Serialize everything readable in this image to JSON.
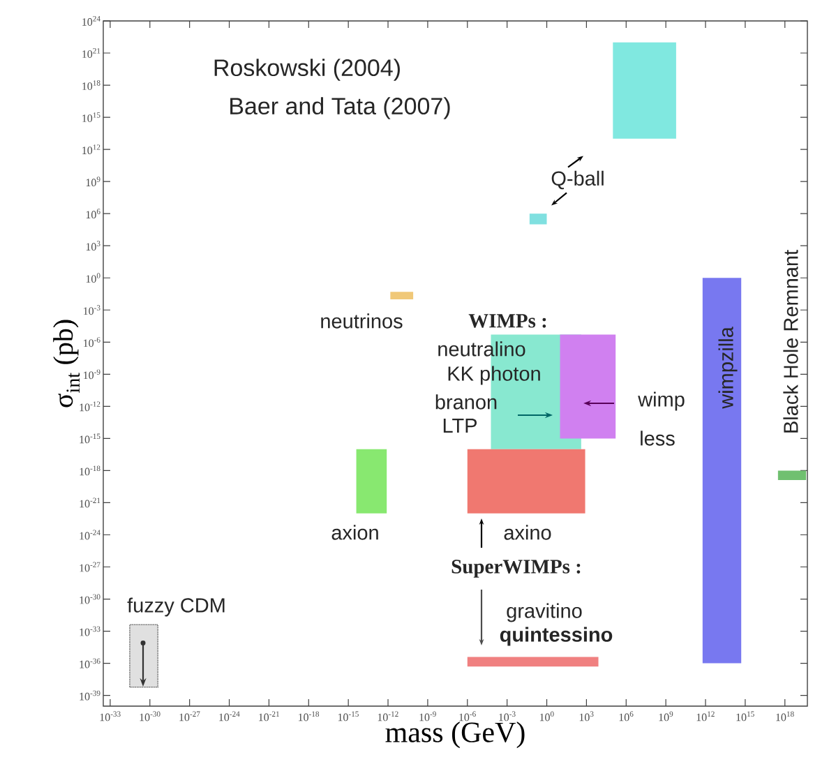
{
  "chart_data": {
    "type": "line",
    "xlabel": "mass (GeV)",
    "ylabel": "σ$_{int}$ (pb)",
    "log": "xy",
    "xlim": [
      3e-34,
      5e+19
    ],
    "ylim": [
      1e-40,
      1e+24
    ],
    "xticks": [
      {
        "value": 1e-33,
        "label": "10$^{-33}$"
      },
      {
        "value": 1e-30,
        "label": "10$^{-30}$"
      },
      {
        "value": 1e-27,
        "label": "10$^{-27}$"
      },
      {
        "value": 1e-24,
        "label": "10$^{-24}$"
      },
      {
        "value": 1e-21,
        "label": "10$^{-21}$"
      },
      {
        "value": 1e-18,
        "label": "10$^{-18}$"
      },
      {
        "value": 1e-15,
        "label": "10$^{-15}$"
      },
      {
        "value": 1e-12,
        "label": "10$^{-12}$"
      },
      {
        "value": 1e-09,
        "label": "10$^{-9}$"
      },
      {
        "value": 1e-06,
        "label": "10$^{-6}$"
      },
      {
        "value": 0.001,
        "label": "10$^{-3}$"
      },
      {
        "value": 1,
        "label": "10$^{0}$"
      },
      {
        "value": 1000.0,
        "label": "10$^{3}$"
      },
      {
        "value": 1000000.0,
        "label": "10$^{6}$"
      },
      {
        "value": 1000000000.0,
        "label": "10$^{9}$"
      },
      {
        "value": 1000000000000.0,
        "label": "10$^{12}$"
      },
      {
        "value": 1000000000000000.0,
        "label": "10$^{15}$"
      },
      {
        "value": 1e+18,
        "label": "10$^{18}$"
      }
    ],
    "yticks": [
      {
        "value": 1e-39,
        "label": "10$^{-39}$"
      },
      {
        "value": 1e-36,
        "label": "10$^{-36}$"
      },
      {
        "value": 1e-33,
        "label": "10$^{-33}$"
      },
      {
        "value": 1e-30,
        "label": "10$^{-30}$"
      },
      {
        "value": 1e-27,
        "label": "10$^{-27}$"
      },
      {
        "value": 1e-24,
        "label": "10$^{-24}$"
      },
      {
        "value": 1e-21,
        "label": "10$^{-21}$"
      },
      {
        "value": 1e-18,
        "label": "10$^{-18}$"
      },
      {
        "value": 1e-15,
        "label": "10$^{-15}$"
      },
      {
        "value": 1e-12,
        "label": "10$^{-12}$"
      },
      {
        "value": 1e-09,
        "label": "10$^{-9}$"
      },
      {
        "value": 1e-06,
        "label": "10$^{-6}$"
      },
      {
        "value": 0.001,
        "label": "10$^{-3}$"
      },
      {
        "value": 1,
        "label": "10$^{0}$"
      },
      {
        "value": 1000.0,
        "label": "10$^{3}$"
      },
      {
        "value": 1000000.0,
        "label": "10$^{6}$"
      },
      {
        "value": 1000000000.0,
        "label": "10$^{9}$"
      },
      {
        "value": 1000000000000.0,
        "label": "10$^{12}$"
      },
      {
        "value": 1000000000000000.0,
        "label": "10$^{15}$"
      },
      {
        "value": 1e+18,
        "label": "10$^{18}$"
      },
      {
        "value": 1e+21,
        "label": "10$^{21}$"
      },
      {
        "value": 1e+24,
        "label": "10$^{24}$"
      }
    ],
    "series": [
      {
        "color": "#80e8e0",
        "x": [
          100000.0,
          6000000000.0
        ],
        "values": [
          null,
          null
        ],
        "lower": [
          10000000000000.0,
          10000000000000.0
        ],
        "upper": [
          1e+22,
          1e+22
        ]
      },
      {
        "color": "#80e0e0",
        "x": [
          0.05,
          1
        ],
        "values": [
          null,
          null
        ],
        "lower": [
          100000.0,
          100000.0
        ],
        "upper": [
          1000000.0,
          1000000.0
        ]
      },
      {
        "color": "#f0c878",
        "x": [
          1.5e-12,
          8e-11
        ],
        "values": [
          null,
          null
        ],
        "lower": [
          0.01,
          0.01
        ],
        "upper": [
          0.05,
          0.05
        ]
      },
      {
        "color": "#88e8d0",
        "x": [
          6e-05,
          400.0
        ],
        "values": [
          null,
          null
        ],
        "lower": [
          1e-16,
          1e-16
        ],
        "upper": [
          5e-06,
          5e-06
        ]
      },
      {
        "color": "#d080f0",
        "x": [
          10.0,
          160000.0
        ],
        "values": [
          null,
          null
        ],
        "lower": [
          1e-15,
          1e-15
        ],
        "upper": [
          5e-06,
          5e-06
        ]
      },
      {
        "color": "#88e870",
        "x": [
          4e-15,
          8e-13
        ],
        "values": [
          null,
          null
        ],
        "lower": [
          1e-22,
          1e-22
        ],
        "upper": [
          1e-16,
          1e-16
        ]
      },
      {
        "color": "#f07870",
        "x": [
          1e-06,
          800.0
        ],
        "values": [
          null,
          null
        ],
        "lower": [
          1e-22,
          1e-22
        ],
        "upper": [
          1e-16,
          1e-16
        ]
      },
      {
        "color": "#f08080",
        "x": [
          1e-06,
          8000.0
        ],
        "values": [
          null,
          null
        ],
        "lower": [
          5e-37,
          5e-37
        ],
        "upper": [
          4e-36,
          4e-36
        ]
      },
      {
        "color": "#7878f0",
        "x": [
          600000000000.0,
          500000000000000.0
        ],
        "values": [
          null,
          null
        ],
        "lower": [
          1e-36,
          1e-36
        ],
        "upper": [
          1,
          1
        ]
      },
      {
        "color": "#70c070",
        "x": [
          3e+17,
          4e+19
        ],
        "values": [
          null,
          null
        ],
        "lower": [
          1.3e-19,
          1.3e-19
        ],
        "upper": [
          1e-18,
          1e-18
        ]
      },
      {
        "color": "#e0e0e0",
        "x": [
          3e-32,
          4e-30
        ],
        "values": [
          null,
          null
        ],
        "lower": [
          6e-39,
          6e-39
        ],
        "upper": [
          4e-33,
          4e-33
        ],
        "line_style": "dotted"
      }
    ],
    "annotations": [
      "Roskowski (2004)",
      "Baer and Tata (2007)",
      "Q-ball",
      "neutrinos",
      "**WIMPs :**",
      "neutralino",
      "KK photon",
      "branon",
      "LTP",
      "wimp",
      "less",
      "wimpzilla",
      "Black Hole Remnant",
      "axion",
      "axino",
      "**SuperWIMPs :**",
      "gravitino",
      "**quintessino**",
      "fuzzy CDM"
    ]
  }
}
